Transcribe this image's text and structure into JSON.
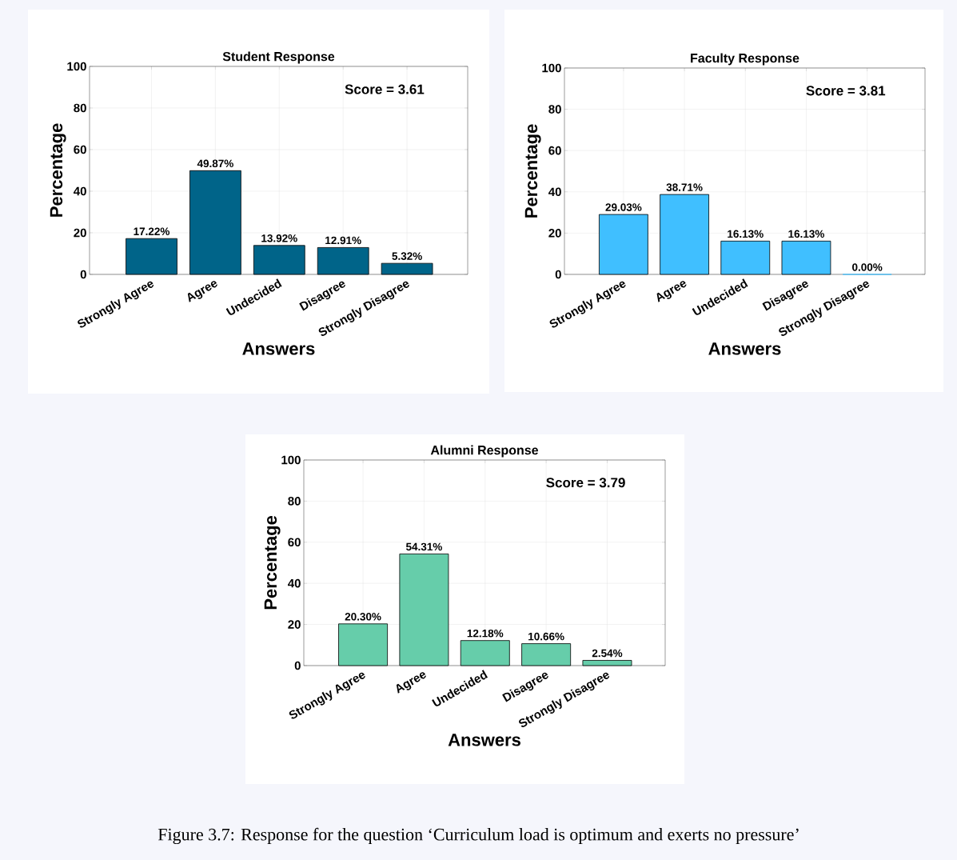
{
  "chart_data": [
    {
      "type": "bar",
      "title": "Student Response",
      "xlabel": "Answers",
      "ylabel": "Percentage",
      "categories": [
        "Strongly Agree",
        "Agree",
        "Undecided",
        "Disagree",
        "Strongly Disagree"
      ],
      "values": [
        17.22,
        49.87,
        13.92,
        12.91,
        5.32
      ],
      "value_labels": [
        "17.22%",
        "49.87%",
        "13.92%",
        "12.91%",
        "5.32%"
      ],
      "color": "#006489",
      "ylim": [
        0,
        100
      ],
      "yticks": [
        0,
        20,
        40,
        60,
        80,
        100
      ],
      "grid": true,
      "annotations": [
        "Score = 3.61"
      ]
    },
    {
      "type": "bar",
      "title": "Faculty Response",
      "xlabel": "Answers",
      "ylabel": "Percentage",
      "categories": [
        "Strongly Agree",
        "Agree",
        "Undecided",
        "Disagree",
        "Strongly Disagree"
      ],
      "values": [
        29.03,
        38.71,
        16.13,
        16.13,
        0.0
      ],
      "value_labels": [
        "29.03%",
        "38.71%",
        "16.13%",
        "16.13%",
        "0.00%"
      ],
      "color": "#40bfff",
      "ylim": [
        0,
        100
      ],
      "yticks": [
        0,
        20,
        40,
        60,
        80,
        100
      ],
      "grid": true,
      "annotations": [
        "Score = 3.81"
      ]
    },
    {
      "type": "bar",
      "title": "Alumni Response",
      "xlabel": "Answers",
      "ylabel": "Percentage",
      "categories": [
        "Strongly Agree",
        "Agree",
        "Undecided",
        "Disagree",
        "Strongly Disagree"
      ],
      "values": [
        20.3,
        54.31,
        12.18,
        10.66,
        2.54
      ],
      "value_labels": [
        "20.30%",
        "54.31%",
        "12.18%",
        "10.66%",
        "2.54%"
      ],
      "color": "#66cdaa",
      "ylim": [
        0,
        100
      ],
      "yticks": [
        0,
        20,
        40,
        60,
        80,
        100
      ],
      "grid": true,
      "annotations": [
        "Score = 3.79",
        "Figure 3.7: Response for the question ‘Curriculum load is optimum and exerts no pressure’"
      ]
    }
  ]
}
